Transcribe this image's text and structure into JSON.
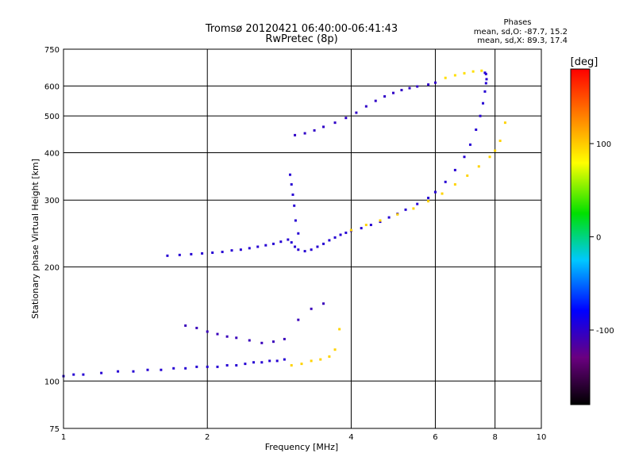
{
  "chart_data": {
    "type": "scatter",
    "title": "Tromsø 20120421 06:40:00-06:41:43",
    "subtitle": "RwPretec (8p)",
    "xlabel": "Frequency [MHz]",
    "ylabel": "Stationary phase Virtual Height [km]",
    "x_scale": "log",
    "y_scale": "log",
    "xlim": [
      1,
      10
    ],
    "ylim": [
      75,
      750
    ],
    "grid": true,
    "x_ticks": [
      1,
      2,
      4,
      6,
      8,
      10
    ],
    "y_ticks": [
      75,
      100,
      200,
      300,
      400,
      500,
      600,
      750
    ],
    "stats_heading": "Phases",
    "stats_lines": [
      "mean, sd,O: -87.7, 15.2",
      "mean, sd,X: 89.3, 17.4"
    ],
    "colorbar": {
      "label": "[deg]",
      "range": [
        -180,
        180
      ],
      "ticks": [
        100,
        0,
        -100
      ],
      "colors": [
        "#000000",
        "#6a0080",
        "#0000ff",
        "#00c8ff",
        "#00e000",
        "#ffff00",
        "#ff8000",
        "#ff0000"
      ]
    },
    "series": [
      {
        "phase": -95,
        "x": [
          1.0,
          1.05,
          1.1,
          1.2,
          1.3,
          1.4,
          1.5,
          1.6,
          1.7,
          1.8,
          1.9,
          2.0,
          2.1,
          2.2,
          2.3,
          2.4,
          2.5,
          2.6,
          2.7,
          2.8,
          2.9
        ],
        "y": [
          103,
          104,
          104,
          105,
          106,
          106,
          107,
          107,
          108,
          108,
          109,
          109,
          109,
          110,
          110,
          111,
          112,
          112,
          113,
          113,
          114
        ]
      },
      {
        "phase": -95,
        "x": [
          1.65,
          1.75,
          1.85,
          1.95,
          2.05,
          2.15,
          2.25,
          2.35,
          2.45,
          2.55,
          2.65,
          2.75,
          2.85,
          2.95,
          3.0,
          3.05,
          3.1,
          3.2,
          3.3,
          3.4,
          3.5,
          3.6,
          3.7,
          3.8,
          3.9,
          4.0,
          4.2,
          4.4,
          4.6,
          4.8,
          5.0,
          5.2,
          5.5,
          5.8,
          6.0
        ],
        "y": [
          214,
          215,
          216,
          217,
          218,
          219,
          221,
          222,
          224,
          226,
          228,
          230,
          233,
          236,
          232,
          226,
          222,
          220,
          222,
          226,
          230,
          235,
          239,
          243,
          246,
          249,
          253,
          258,
          263,
          270,
          276,
          283,
          293,
          304,
          315
        ]
      },
      {
        "phase": -95,
        "x": [
          6.0,
          6.3,
          6.6,
          6.9,
          7.1,
          7.3,
          7.45,
          7.55,
          7.62,
          7.66,
          7.68,
          7.66,
          7.62
        ],
        "y": [
          315,
          335,
          360,
          390,
          420,
          460,
          500,
          540,
          580,
          610,
          625,
          645,
          650
        ]
      },
      {
        "phase": -100,
        "x": [
          3.05,
          3.2,
          3.35,
          3.5,
          3.7,
          3.9,
          4.1,
          4.3,
          4.5,
          4.7,
          4.9,
          5.1,
          5.3,
          5.5,
          5.8,
          6.0
        ],
        "y": [
          445,
          450,
          458,
          468,
          480,
          494,
          510,
          530,
          548,
          563,
          575,
          585,
          592,
          598,
          605,
          612
        ]
      },
      {
        "phase": -95,
        "x": [
          2.98,
          3.0,
          3.02,
          3.04,
          3.06,
          3.1
        ],
        "y": [
          350,
          330,
          310,
          290,
          265,
          245
        ]
      },
      {
        "phase": -105,
        "x": [
          1.8,
          1.9,
          2.0,
          2.1,
          2.2,
          2.3,
          2.45,
          2.6,
          2.75,
          2.9,
          3.1,
          3.3,
          3.5
        ],
        "y": [
          140,
          138,
          135,
          133,
          131,
          130,
          128,
          126,
          127,
          129,
          145,
          155,
          160
        ]
      },
      {
        "phase": 95,
        "x": [
          4.0,
          4.3,
          4.6,
          5.0,
          5.4,
          5.8,
          6.2,
          6.6,
          7.0,
          7.4,
          7.8,
          8.0,
          8.2,
          8.4
        ],
        "y": [
          250,
          258,
          265,
          275,
          285,
          298,
          312,
          330,
          348,
          368,
          390,
          405,
          430,
          480
        ]
      },
      {
        "phase": 95,
        "x": [
          3.0,
          3.15,
          3.3,
          3.45,
          3.6,
          3.7,
          3.78
        ],
        "y": [
          110,
          111,
          113,
          114,
          116,
          121,
          137
        ]
      },
      {
        "phase": 90,
        "x": [
          6.3,
          6.6,
          6.9,
          7.2,
          7.5
        ],
        "y": [
          630,
          640,
          648,
          655,
          658
        ]
      }
    ]
  }
}
